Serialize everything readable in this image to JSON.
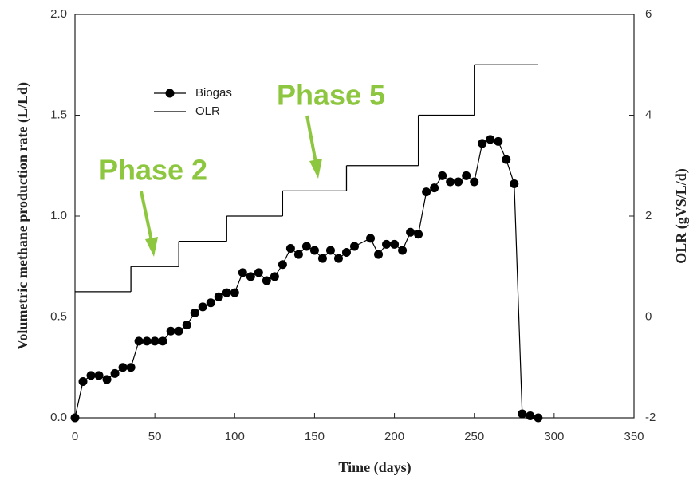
{
  "chart_data": {
    "type": "line",
    "x_label": "Time (days)",
    "y_label": "Volumetric methane production rate (L/Ld)",
    "y2_label": "OLR (gVS/L/d)",
    "xlim": [
      0,
      350
    ],
    "xticks": [
      0,
      50,
      100,
      150,
      200,
      250,
      300,
      350
    ],
    "ylim": [
      0,
      2
    ],
    "yticks": [
      {
        "value": 0,
        "label": "0.0"
      },
      0.5,
      {
        "value": 1,
        "label": "1.0"
      },
      1.5,
      {
        "value": 2,
        "label": "2.0"
      }
    ],
    "y2lim": [
      -2,
      6
    ],
    "y2ticks": [
      -2,
      0,
      2,
      4,
      6
    ],
    "annotations": [
      "Phase 2",
      "Phase 5"
    ],
    "series": [
      {
        "name": "Biogas",
        "color": "#000000",
        "marker": "circle",
        "x": [
          0,
          5,
          10,
          15,
          20,
          25,
          30,
          35,
          40,
          45,
          50,
          55,
          60,
          65,
          70,
          75,
          80,
          85,
          90,
          95,
          100,
          105,
          110,
          115,
          120,
          125,
          130,
          135,
          140,
          145,
          150,
          155,
          160,
          165,
          170,
          175,
          185,
          190,
          195,
          200,
          205,
          210,
          215,
          220,
          225,
          230,
          235,
          240,
          245,
          250,
          255,
          260,
          265,
          270,
          275,
          280,
          285,
          290
        ],
        "values": [
          0,
          0.18,
          0.21,
          0.21,
          0.19,
          0.22,
          0.25,
          0.25,
          0.38,
          0.38,
          0.38,
          0.38,
          0.43,
          0.43,
          0.46,
          0.52,
          0.55,
          0.57,
          0.6,
          0.62,
          0.62,
          0.72,
          0.7,
          0.72,
          0.68,
          0.7,
          0.76,
          0.84,
          0.81,
          0.85,
          0.83,
          0.79,
          0.83,
          0.79,
          0.82,
          0.85,
          0.89,
          0.81,
          0.86,
          0.86,
          0.83,
          0.92,
          0.91,
          1.12,
          1.14,
          1.2,
          1.17,
          1.17,
          1.2,
          1.17,
          1.36,
          1.38,
          1.37,
          1.28,
          1.16,
          0.02,
          0.01,
          0
        ]
      },
      {
        "name": "OLR",
        "color": "#000000",
        "axis": "y2",
        "step": true,
        "x": [
          0,
          35,
          65,
          95,
          130,
          170,
          215,
          250,
          290
        ],
        "values": [
          0.5,
          1,
          1.5,
          2,
          2.5,
          3,
          4,
          5,
          5
        ]
      }
    ]
  }
}
